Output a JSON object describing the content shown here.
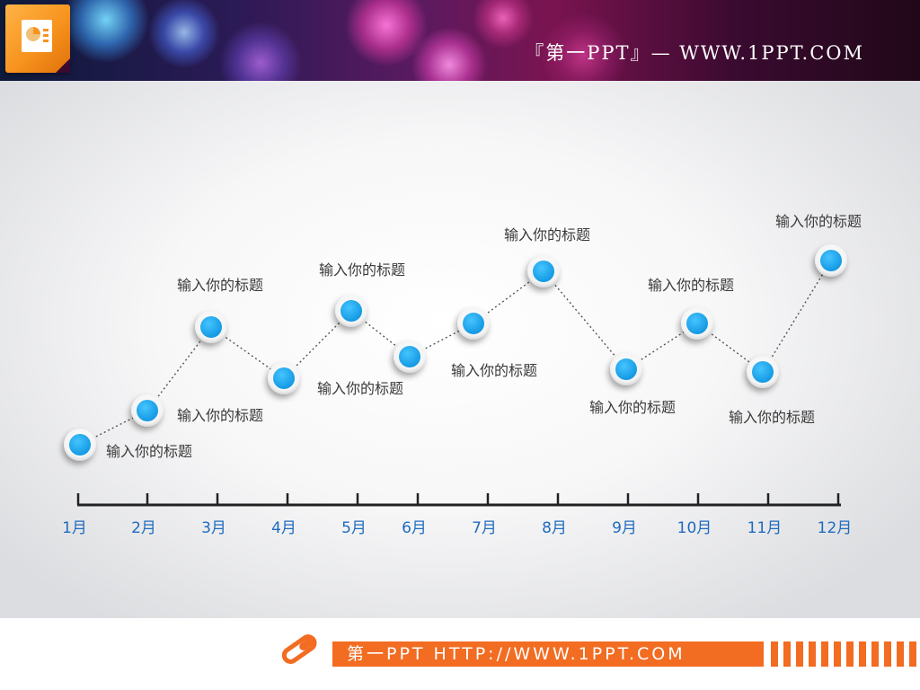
{
  "header": {
    "brand_text": "『第一PPT』— WWW.1PPT.COM",
    "logo_icon": "powerpoint-logo-icon"
  },
  "timeline": {
    "axis_color": "#222222",
    "marker_color": "#1aa3ea",
    "label_color": "#1f6bbf",
    "months": [
      "1月",
      "2月",
      "3月",
      "4月",
      "5月",
      "6月",
      "7月",
      "8月",
      "9月",
      "10月",
      "11月",
      "12月"
    ],
    "points": [
      {
        "label": "输入你的标题"
      },
      {
        "label": "输入你的标题"
      },
      {
        "label": "输入你的标题"
      },
      {
        "label": "",
        "note": ""
      },
      {
        "label": "输入你的标题"
      },
      {
        "label": "输入你的标题"
      },
      {
        "label": ""
      },
      {
        "label": "输入你的标题"
      },
      {
        "label": "输入你的标题"
      },
      {
        "label": "输入你的标题"
      },
      {
        "label": "输入你的标题"
      },
      {
        "label": "输入你的标题"
      }
    ],
    "extra_labels": [
      "输入你的标题"
    ]
  },
  "footer": {
    "bar_text": "第一PPT HTTP://WWW.1PPT.COM",
    "accent_color": "#f26c22",
    "icon": "pencil-icon"
  }
}
